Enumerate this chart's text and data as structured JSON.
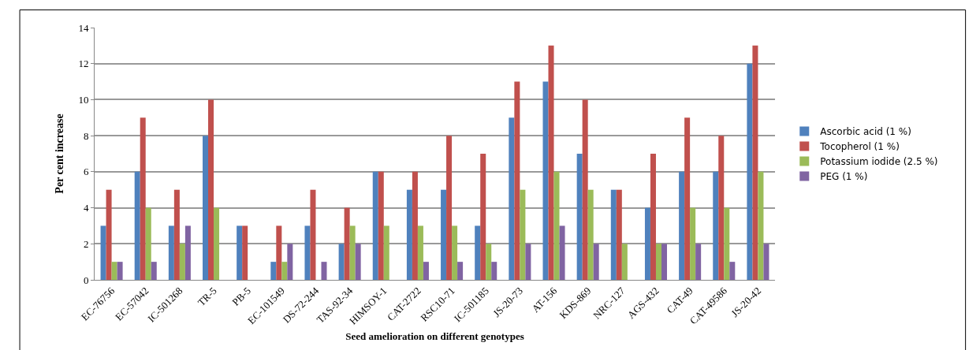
{
  "chart_data": {
    "type": "bar",
    "xlabel": "Seed amelioration on different genotypes",
    "ylabel": "Per cent increase",
    "categories": [
      "EC-76756",
      "EC-57042",
      "IC-501268",
      "TR-5",
      "PB-5",
      "EC-101549",
      "DS-72-244",
      "TAS-92-34",
      "HIMSOY-1",
      "CAT-2722",
      "RSC10-71",
      "IC-501185",
      "JS-20-73",
      "AT-156",
      "KDS-869",
      "NRC-127",
      "AGS-432",
      "CAT-49",
      "CAT-49586",
      "JS-20-42"
    ],
    "series": [
      {
        "name": "Ascorbic acid (1 %)",
        "color": "#4f81bd",
        "values": [
          3,
          6,
          3,
          8,
          3,
          1,
          3,
          2,
          6,
          5,
          5,
          3,
          9,
          11,
          7,
          5,
          4,
          6,
          6,
          12
        ]
      },
      {
        "name": "Tocopherol (1 %)",
        "color": "#c0504d",
        "values": [
          5,
          9,
          5,
          10,
          3,
          3,
          5,
          4,
          6,
          6,
          8,
          7,
          11,
          13,
          10,
          5,
          7,
          9,
          8,
          13
        ]
      },
      {
        "name": "Potassium iodide (2.5 %)",
        "color": "#9bbb59",
        "values": [
          1,
          4,
          2,
          4,
          0,
          1,
          0,
          3,
          3,
          3,
          3,
          2,
          5,
          6,
          5,
          2,
          2,
          4,
          4,
          6
        ]
      },
      {
        "name": "PEG (1 %)",
        "color": "#8064a2",
        "values": [
          1,
          1,
          3,
          0,
          0,
          2,
          1,
          2,
          0,
          1,
          1,
          1,
          2,
          3,
          2,
          0,
          2,
          2,
          1,
          2
        ]
      }
    ],
    "ylim": [
      0,
      14
    ],
    "yticks": [
      0,
      2,
      4,
      6,
      8,
      10,
      12,
      14
    ],
    "grid": "y",
    "legend": "right"
  }
}
